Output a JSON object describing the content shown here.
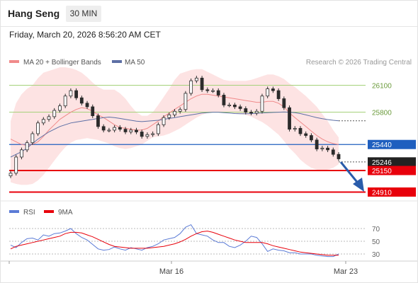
{
  "header": {
    "instrument": "Hang Seng",
    "timeframe": "30 MIN",
    "timestamp": "Friday, March 20, 2026 8:56:20 AM CET"
  },
  "legend": {
    "bollinger_label": "MA 20 + Bollinger Bands",
    "ma50_label": "MA 50",
    "copyright": "Research © 2026 Trading Central",
    "rsi_label": "RSI",
    "rsi_ma_label": "9MA"
  },
  "colors": {
    "band_fill": "#fde3e3",
    "ma20": "#f08a8a",
    "ma50": "#5d6fa5",
    "candle": "#2b2b2b",
    "support": "#e8000b",
    "resistance": "#a5d17a",
    "pivot": "#1f5fbf",
    "arrow": "#2a5caa",
    "rsi": "#5b7bd6"
  },
  "chart_data": [
    {
      "type": "candlestick",
      "title": "",
      "x_labels": [
        "Mar 16",
        "Mar 23"
      ],
      "y_ticks": [
        26100,
        25800,
        25440,
        25246,
        25150,
        24910
      ],
      "ylim": [
        24900,
        26300
      ],
      "current_price": 25246,
      "levels": {
        "resistance": [
          26100,
          25800
        ],
        "pivot": 25440,
        "support": [
          25150,
          24910
        ]
      },
      "close_series": [
        25120,
        25300,
        25380,
        25460,
        25560,
        25680,
        25720,
        25750,
        25820,
        25870,
        25980,
        26040,
        25960,
        25900,
        25860,
        25760,
        25640,
        25600,
        25600,
        25630,
        25610,
        25580,
        25600,
        25580,
        25530,
        25550,
        25560,
        25660,
        25740,
        25770,
        25810,
        25830,
        26010,
        26150,
        26180,
        26050,
        26040,
        26040,
        25990,
        25880,
        25880,
        25860,
        25840,
        25800,
        25790,
        25810,
        25980,
        26060,
        26040,
        25950,
        25850,
        25610,
        25620,
        25560,
        25540,
        25490,
        25390,
        25400,
        25380,
        25330,
        25280
      ],
      "ma20_series": [
        25500,
        25470,
        25440,
        25430,
        25440,
        25470,
        25530,
        25600,
        25660,
        25720,
        25760,
        25800,
        25830,
        25850,
        25840,
        25810,
        25770,
        25740,
        25700,
        25660,
        25630,
        25620,
        25610,
        25600,
        25600,
        25620,
        25660,
        25700,
        25750,
        25790,
        25830,
        25870,
        25910,
        25950,
        25980,
        26000,
        26000,
        25990,
        25980,
        25970,
        25960,
        25950,
        25940,
        25930,
        25920,
        25910,
        25910,
        25920,
        25920,
        25900,
        25860,
        25790,
        25740,
        25690,
        25640,
        25590,
        25540,
        25500,
        25470,
        25450,
        25440
      ],
      "ma50_series": [
        25300,
        25330,
        25360,
        25400,
        25450,
        25500,
        25540,
        25580,
        25610,
        25640,
        25660,
        25680,
        25690,
        25700,
        25710,
        25720,
        25730,
        25740,
        25745,
        25740,
        25730,
        25720,
        25710,
        25700,
        25695,
        25700,
        25705,
        25710,
        25720,
        25730,
        25740,
        25750,
        25760,
        25770,
        25780,
        25790,
        25795,
        25800,
        25800,
        25795,
        25790,
        25785,
        25782,
        25782,
        25784,
        25788,
        25792,
        25795,
        25797,
        25800,
        25802,
        25800,
        25795,
        25785,
        25770,
        25755,
        25740,
        25728,
        25718,
        25710,
        25704
      ],
      "band_upper": [
        25700,
        25900,
        26000,
        26060,
        26100,
        26180,
        26240,
        26260,
        26280,
        26300,
        26300,
        26290,
        26270,
        26240,
        26190,
        26130,
        26080,
        26050,
        26050,
        26050,
        26010,
        25950,
        25870,
        25800,
        25760,
        25760,
        25800,
        25880,
        25970,
        26060,
        26160,
        26230,
        26250,
        26270,
        26280,
        26280,
        26250,
        26220,
        26190,
        26160,
        26150,
        26150,
        26150,
        26150,
        26160,
        26180,
        26200,
        26220,
        26220,
        26200,
        26170,
        26120,
        26080,
        26030,
        25980,
        25920,
        25860,
        25780,
        25700,
        25600,
        25520
      ],
      "band_lower": [
        25020,
        25000,
        24990,
        24990,
        25000,
        25040,
        25100,
        25180,
        25260,
        25340,
        25410,
        25460,
        25490,
        25500,
        25510,
        25500,
        25490,
        25470,
        25450,
        25420,
        25400,
        25390,
        25400,
        25420,
        25440,
        25480,
        25520,
        25530,
        25540,
        25560,
        25590,
        25620,
        25660,
        25700,
        25740,
        25770,
        25790,
        25800,
        25800,
        25800,
        25800,
        25790,
        25780,
        25770,
        25750,
        25720,
        25690,
        25650,
        25600,
        25550,
        25480,
        25400,
        25340,
        25270,
        25220,
        25180,
        25160,
        25150,
        25160,
        25180,
        25220
      ]
    },
    {
      "type": "line",
      "title": "",
      "y_ticks": [
        70,
        50,
        30
      ],
      "ylim": [
        20,
        80
      ],
      "series": [
        {
          "name": "RSI",
          "values": [
            44,
            40,
            48,
            54,
            55,
            52,
            60,
            58,
            62,
            63,
            66,
            70,
            62,
            56,
            52,
            45,
            38,
            36,
            37,
            41,
            38,
            36,
            40,
            38,
            36,
            40,
            42,
            46,
            52,
            54,
            56,
            62,
            72,
            76,
            62,
            60,
            58,
            52,
            48,
            48,
            42,
            40,
            44,
            50,
            58,
            56,
            46,
            34,
            38,
            36,
            35,
            32,
            32,
            30,
            30,
            30,
            28,
            27,
            26,
            26,
            30
          ]
        },
        {
          "name": "9MA",
          "values": [
            38,
            42,
            44,
            46,
            48,
            50,
            52,
            54,
            56,
            58,
            62,
            64,
            64,
            63,
            60,
            57,
            53,
            49,
            45,
            42,
            41,
            40,
            39,
            39,
            39,
            39,
            40,
            41,
            42,
            44,
            46,
            49,
            53,
            58,
            62,
            65,
            66,
            64,
            61,
            58,
            55,
            52,
            50,
            48,
            48,
            48,
            48,
            46,
            43,
            41,
            39,
            37,
            35,
            33,
            32,
            31,
            30,
            29,
            28,
            28,
            28
          ]
        }
      ]
    }
  ]
}
